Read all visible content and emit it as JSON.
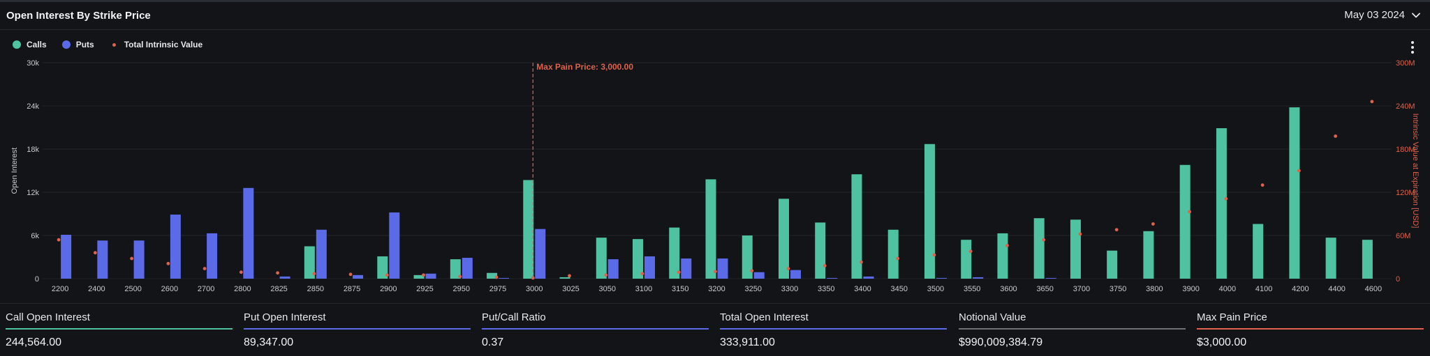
{
  "header": {
    "title": "Open Interest By Strike Price",
    "date": "May 03 2024"
  },
  "legend": {
    "calls": "Calls",
    "puts": "Puts",
    "intrinsic": "Total Intrinsic Value"
  },
  "colors": {
    "calls": "#4fc3a1",
    "puts": "#5b6be8",
    "intrinsic": "#e0624a",
    "grid": "#22252a",
    "axis_text": "#c7cad0"
  },
  "chart_data": {
    "type": "bar",
    "ylabel": "Open Interest",
    "y2label": "Intrinsic Value at Expiration [USD]",
    "ylim": [
      0,
      30000
    ],
    "y2lim": [
      0,
      300000000
    ],
    "yticks": [
      "0",
      "6k",
      "12k",
      "18k",
      "24k",
      "30k"
    ],
    "y2ticks": [
      "0",
      "60M",
      "120M",
      "180M",
      "240M",
      "300M"
    ],
    "categories": [
      "2200",
      "2400",
      "2500",
      "2600",
      "2700",
      "2800",
      "2825",
      "2850",
      "2875",
      "2900",
      "2925",
      "2950",
      "2975",
      "3000",
      "3025",
      "3050",
      "3100",
      "3150",
      "3200",
      "3250",
      "3300",
      "3350",
      "3400",
      "3450",
      "3500",
      "3550",
      "3600",
      "3650",
      "3700",
      "3750",
      "3800",
      "3900",
      "4000",
      "4100",
      "4200",
      "4400",
      "4600"
    ],
    "series": [
      {
        "name": "Calls",
        "axis": "left",
        "values": [
          0,
          0,
          0,
          0,
          0,
          0,
          0,
          4500,
          0,
          3100,
          500,
          2700,
          800,
          13700,
          200,
          5700,
          5500,
          7100,
          13800,
          6000,
          11100,
          7800,
          14500,
          6800,
          18700,
          5400,
          6300,
          8400,
          8200,
          3900,
          6600,
          15800,
          20900,
          7600,
          23800,
          5700,
          5400
        ]
      },
      {
        "name": "Puts",
        "axis": "left",
        "values": [
          6100,
          5300,
          5300,
          8900,
          6300,
          12600,
          300,
          6800,
          500,
          9200,
          700,
          2900,
          100,
          6900,
          0,
          2700,
          3100,
          2800,
          2800,
          900,
          1200,
          100,
          300,
          0,
          100,
          200,
          0,
          100,
          0,
          0,
          0,
          0,
          0,
          0,
          0,
          0,
          0
        ]
      },
      {
        "name": "Total Intrinsic Value",
        "axis": "right",
        "values": [
          54000000,
          36000000,
          28000000,
          21000000,
          14000000,
          9000000,
          8000000,
          7000000,
          6000000,
          5000000,
          5000000,
          3000000,
          2000000,
          1000000,
          4000000,
          5000000,
          7000000,
          9000000,
          10000000,
          11000000,
          14000000,
          18000000,
          23000000,
          28000000,
          33000000,
          38000000,
          46000000,
          54000000,
          62000000,
          68000000,
          76000000,
          93000000,
          111000000,
          130000000,
          150000000,
          198000000,
          246000000
        ]
      }
    ],
    "annotation": {
      "label": "Max Pain Price: 3,000.00",
      "category": "3000"
    },
    "grid": true,
    "legend_position": "top-left"
  },
  "stats": [
    {
      "label": "Call Open Interest",
      "value": "244,564.00",
      "color": "#4fc3a1"
    },
    {
      "label": "Put Open Interest",
      "value": "89,347.00",
      "color": "#5b6be8"
    },
    {
      "label": "Put/Call Ratio",
      "value": "0.37",
      "color": "#5b6be8"
    },
    {
      "label": "Total Open Interest",
      "value": "333,911.00",
      "color": "#5b6be8"
    },
    {
      "label": "Notional Value",
      "value": "$990,009,384.79",
      "color": "#6f737a"
    },
    {
      "label": "Max Pain Price",
      "value": "$3,000.00",
      "color": "#e0624a"
    }
  ]
}
